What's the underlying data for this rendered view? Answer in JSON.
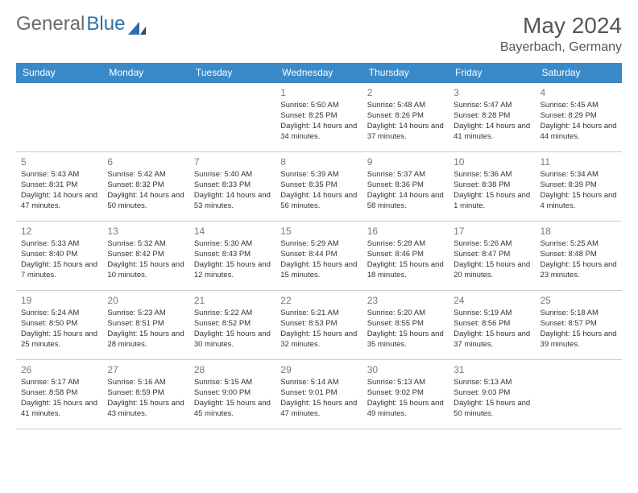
{
  "logo": {
    "text1": "General",
    "text2": "Blue"
  },
  "title": "May 2024",
  "location": "Bayerbach, Germany",
  "colors": {
    "header_bg": "#3a8ac9",
    "header_text": "#ffffff",
    "row_top_border": "#3a7cb0",
    "row_bottom_border": "#c9c9c9",
    "daynum": "#7a7a7a",
    "logo_gray": "#6a6a6a",
    "logo_blue": "#2f6fa9"
  },
  "day_headers": [
    "Sunday",
    "Monday",
    "Tuesday",
    "Wednesday",
    "Thursday",
    "Friday",
    "Saturday"
  ],
  "weeks": [
    [
      null,
      null,
      null,
      {
        "n": "1",
        "sr": "5:50 AM",
        "ss": "8:25 PM",
        "dl": "14 hours and 34 minutes."
      },
      {
        "n": "2",
        "sr": "5:48 AM",
        "ss": "8:26 PM",
        "dl": "14 hours and 37 minutes."
      },
      {
        "n": "3",
        "sr": "5:47 AM",
        "ss": "8:28 PM",
        "dl": "14 hours and 41 minutes."
      },
      {
        "n": "4",
        "sr": "5:45 AM",
        "ss": "8:29 PM",
        "dl": "14 hours and 44 minutes."
      }
    ],
    [
      {
        "n": "5",
        "sr": "5:43 AM",
        "ss": "8:31 PM",
        "dl": "14 hours and 47 minutes."
      },
      {
        "n": "6",
        "sr": "5:42 AM",
        "ss": "8:32 PM",
        "dl": "14 hours and 50 minutes."
      },
      {
        "n": "7",
        "sr": "5:40 AM",
        "ss": "8:33 PM",
        "dl": "14 hours and 53 minutes."
      },
      {
        "n": "8",
        "sr": "5:39 AM",
        "ss": "8:35 PM",
        "dl": "14 hours and 56 minutes."
      },
      {
        "n": "9",
        "sr": "5:37 AM",
        "ss": "8:36 PM",
        "dl": "14 hours and 58 minutes."
      },
      {
        "n": "10",
        "sr": "5:36 AM",
        "ss": "8:38 PM",
        "dl": "15 hours and 1 minute."
      },
      {
        "n": "11",
        "sr": "5:34 AM",
        "ss": "8:39 PM",
        "dl": "15 hours and 4 minutes."
      }
    ],
    [
      {
        "n": "12",
        "sr": "5:33 AM",
        "ss": "8:40 PM",
        "dl": "15 hours and 7 minutes."
      },
      {
        "n": "13",
        "sr": "5:32 AM",
        "ss": "8:42 PM",
        "dl": "15 hours and 10 minutes."
      },
      {
        "n": "14",
        "sr": "5:30 AM",
        "ss": "8:43 PM",
        "dl": "15 hours and 12 minutes."
      },
      {
        "n": "15",
        "sr": "5:29 AM",
        "ss": "8:44 PM",
        "dl": "15 hours and 15 minutes."
      },
      {
        "n": "16",
        "sr": "5:28 AM",
        "ss": "8:46 PM",
        "dl": "15 hours and 18 minutes."
      },
      {
        "n": "17",
        "sr": "5:26 AM",
        "ss": "8:47 PM",
        "dl": "15 hours and 20 minutes."
      },
      {
        "n": "18",
        "sr": "5:25 AM",
        "ss": "8:48 PM",
        "dl": "15 hours and 23 minutes."
      }
    ],
    [
      {
        "n": "19",
        "sr": "5:24 AM",
        "ss": "8:50 PM",
        "dl": "15 hours and 25 minutes."
      },
      {
        "n": "20",
        "sr": "5:23 AM",
        "ss": "8:51 PM",
        "dl": "15 hours and 28 minutes."
      },
      {
        "n": "21",
        "sr": "5:22 AM",
        "ss": "8:52 PM",
        "dl": "15 hours and 30 minutes."
      },
      {
        "n": "22",
        "sr": "5:21 AM",
        "ss": "8:53 PM",
        "dl": "15 hours and 32 minutes."
      },
      {
        "n": "23",
        "sr": "5:20 AM",
        "ss": "8:55 PM",
        "dl": "15 hours and 35 minutes."
      },
      {
        "n": "24",
        "sr": "5:19 AM",
        "ss": "8:56 PM",
        "dl": "15 hours and 37 minutes."
      },
      {
        "n": "25",
        "sr": "5:18 AM",
        "ss": "8:57 PM",
        "dl": "15 hours and 39 minutes."
      }
    ],
    [
      {
        "n": "26",
        "sr": "5:17 AM",
        "ss": "8:58 PM",
        "dl": "15 hours and 41 minutes."
      },
      {
        "n": "27",
        "sr": "5:16 AM",
        "ss": "8:59 PM",
        "dl": "15 hours and 43 minutes."
      },
      {
        "n": "28",
        "sr": "5:15 AM",
        "ss": "9:00 PM",
        "dl": "15 hours and 45 minutes."
      },
      {
        "n": "29",
        "sr": "5:14 AM",
        "ss": "9:01 PM",
        "dl": "15 hours and 47 minutes."
      },
      {
        "n": "30",
        "sr": "5:13 AM",
        "ss": "9:02 PM",
        "dl": "15 hours and 49 minutes."
      },
      {
        "n": "31",
        "sr": "5:13 AM",
        "ss": "9:03 PM",
        "dl": "15 hours and 50 minutes."
      },
      null
    ]
  ],
  "labels": {
    "sunrise": "Sunrise:",
    "sunset": "Sunset:",
    "daylight": "Daylight:"
  }
}
